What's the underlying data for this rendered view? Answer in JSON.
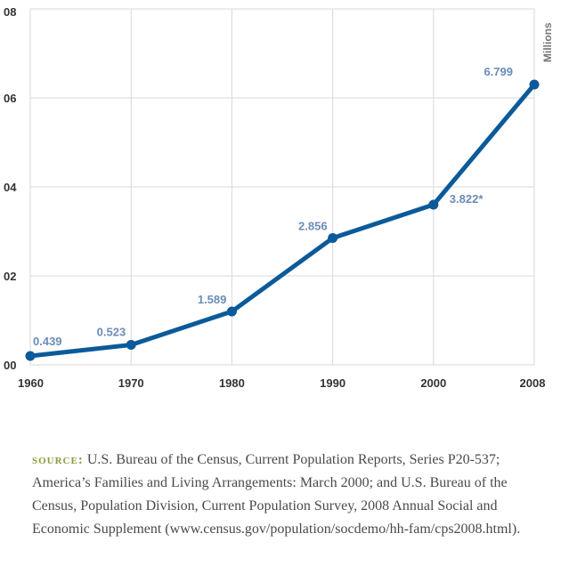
{
  "chart_data": {
    "type": "line",
    "categories": [
      "1960",
      "1970",
      "1980",
      "1990",
      "2000",
      "2008"
    ],
    "series": [
      {
        "values": [
          0.439,
          0.523,
          1.589,
          2.856,
          3.822,
          6.799
        ]
      }
    ],
    "data_labels": [
      "0.439",
      "0.523",
      "1.589",
      "2.856",
      "3.822*",
      "6.799"
    ],
    "plotted_y": [
      0.2,
      0.45,
      1.2,
      2.85,
      3.6,
      6.3
    ],
    "y_ticks": [
      "00",
      "02",
      "04",
      "06",
      "08"
    ],
    "y_tick_values": [
      0,
      2,
      4,
      6,
      8
    ],
    "ylim": [
      0,
      8
    ],
    "unit_label": "Millions",
    "grid": true,
    "colors": {
      "line": "#0b5a9a",
      "label": "#6b8cb8",
      "grid": "#d9d9d9"
    }
  },
  "source": {
    "lead": "SOURCE:",
    "text": "U.S. Bureau of the Census, Current Population Reports, Series P20-537; America’s Families and Living Arrangements: March 2000; and U.S. Bureau of the Census, Population Division, Current Population Survey, 2008 Annual Social and Economic Supplement (www.census.gov/population/socdemo/hh-fam/cps2008.html)."
  }
}
